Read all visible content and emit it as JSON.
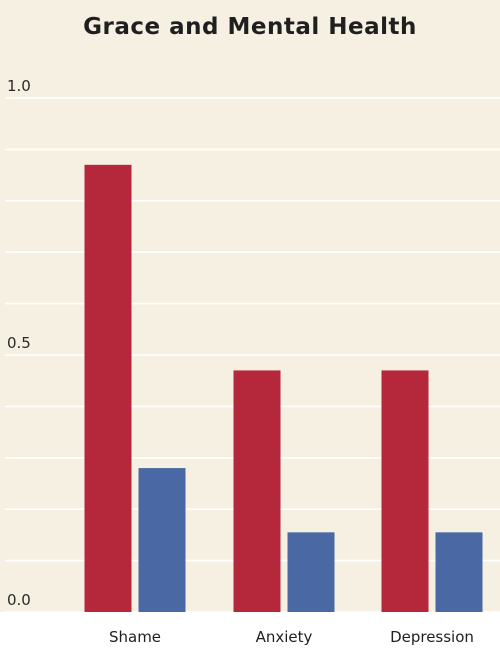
{
  "chart_data": {
    "type": "bar",
    "title": "Grace and Mental Health",
    "xlabel": "",
    "ylabel": "",
    "categories": [
      "Shame",
      "Anxiety",
      "Depression"
    ],
    "series": [
      {
        "values": [
          0.87,
          0.47,
          0.47
        ]
      },
      {
        "values": [
          0.28,
          0.155,
          0.155
        ]
      }
    ],
    "ylim": [
      0,
      1.0
    ],
    "yticks": [
      0.0,
      0.5,
      1.0
    ],
    "ytick_labels": [
      "0.0",
      "0.5",
      "1.0"
    ],
    "minor_gridline_step": 0.1,
    "grid": true,
    "legend": "none",
    "colors": [
      "#b5273b",
      "#4a69a4"
    ],
    "background": "#f5f0e1",
    "gridline_color": "#ffffff"
  }
}
